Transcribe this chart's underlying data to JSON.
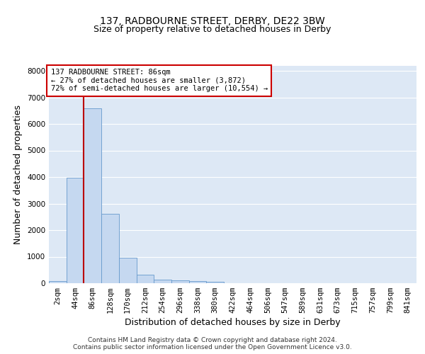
{
  "title_line1": "137, RADBOURNE STREET, DERBY, DE22 3BW",
  "title_line2": "Size of property relative to detached houses in Derby",
  "xlabel": "Distribution of detached houses by size in Derby",
  "ylabel": "Number of detached properties",
  "categories": [
    "2sqm",
    "44sqm",
    "86sqm",
    "128sqm",
    "170sqm",
    "212sqm",
    "254sqm",
    "296sqm",
    "338sqm",
    "380sqm",
    "422sqm",
    "464sqm",
    "506sqm",
    "547sqm",
    "589sqm",
    "631sqm",
    "673sqm",
    "715sqm",
    "757sqm",
    "799sqm",
    "841sqm"
  ],
  "bar_values": [
    80,
    3980,
    6580,
    2620,
    960,
    310,
    130,
    110,
    90,
    60,
    0,
    0,
    0,
    0,
    0,
    0,
    0,
    0,
    0,
    0,
    0
  ],
  "bar_color": "#c5d8f0",
  "bar_edge_color": "#6699cc",
  "vline_x": 1.5,
  "vline_color": "#bb0000",
  "annotation_text": "137 RADBOURNE STREET: 86sqm\n← 27% of detached houses are smaller (3,872)\n72% of semi-detached houses are larger (10,554) →",
  "annotation_box_color": "#cc0000",
  "ylim": [
    0,
    8200
  ],
  "yticks": [
    0,
    1000,
    2000,
    3000,
    4000,
    5000,
    6000,
    7000,
    8000
  ],
  "background_color": "#dde8f5",
  "grid_color": "#ffffff",
  "footer_text": "Contains HM Land Registry data © Crown copyright and database right 2024.\nContains public sector information licensed under the Open Government Licence v3.0.",
  "title_fontsize": 10,
  "subtitle_fontsize": 9,
  "axis_label_fontsize": 9,
  "tick_fontsize": 7.5,
  "annotation_fontsize": 7.5,
  "footer_fontsize": 6.5
}
